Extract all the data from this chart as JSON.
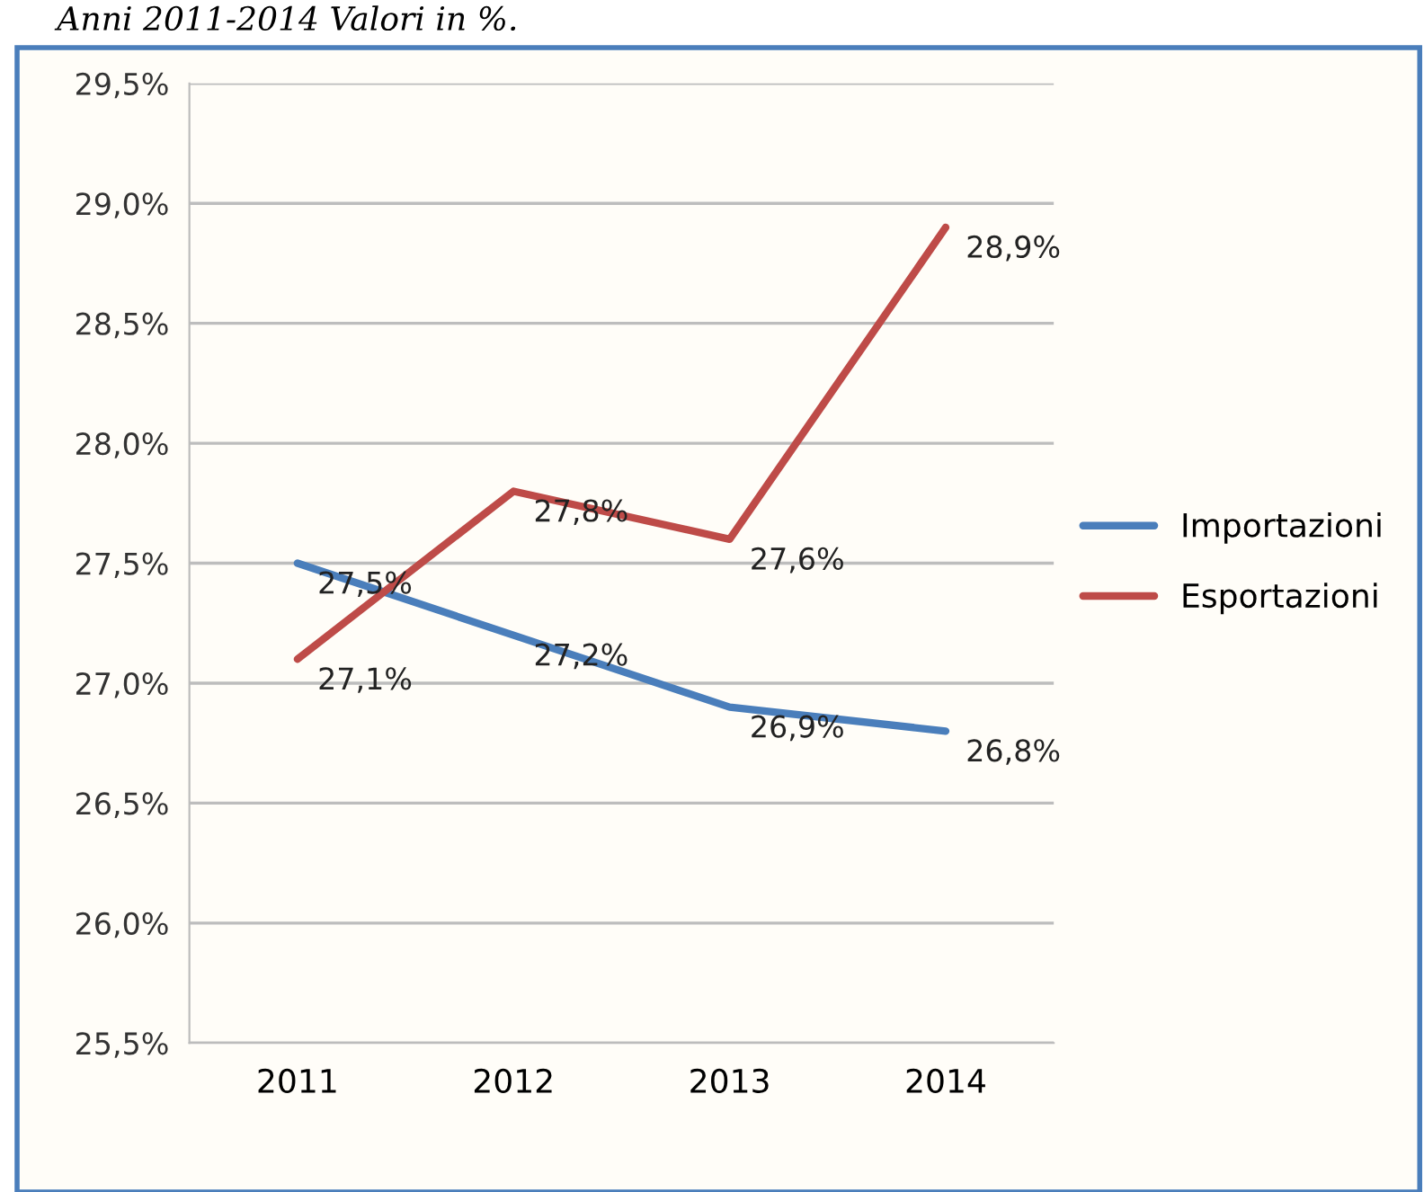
{
  "chart_data": {
    "type": "line",
    "annotations": [
      "Anni 2011-2014 Valori in %."
    ],
    "categories": [
      "2011",
      "2012",
      "2013",
      "2014"
    ],
    "series": [
      {
        "name": "Importazioni",
        "color": "#4a7ebb",
        "values": [
          27.5,
          27.2,
          26.9,
          26.8
        ],
        "value_labels": [
          "27,5%",
          "27,2%",
          "26,9%",
          "26,8%"
        ]
      },
      {
        "name": "Esportazioni",
        "color": "#be4b48",
        "values": [
          27.1,
          27.8,
          27.6,
          28.9
        ],
        "value_labels": [
          "27,1%",
          "27,8%",
          "27,6%",
          "28,9%"
        ]
      }
    ],
    "ylim": [
      25.5,
      29.5
    ],
    "yticks": [
      {
        "value": 25.5,
        "label": "25,5%"
      },
      {
        "value": 26.0,
        "label": "26,0%"
      },
      {
        "value": 26.5,
        "label": "26,5%"
      },
      {
        "value": 27.0,
        "label": "27,0%"
      },
      {
        "value": 27.5,
        "label": "27,5%"
      },
      {
        "value": 28.0,
        "label": "28,0%"
      },
      {
        "value": 28.5,
        "label": "28,5%"
      },
      {
        "value": 29.0,
        "label": "29,0%"
      },
      {
        "value": 29.5,
        "label": "29,5%"
      }
    ],
    "grid": "y",
    "legend": "right",
    "marker": "none",
    "line_style": "solid"
  }
}
